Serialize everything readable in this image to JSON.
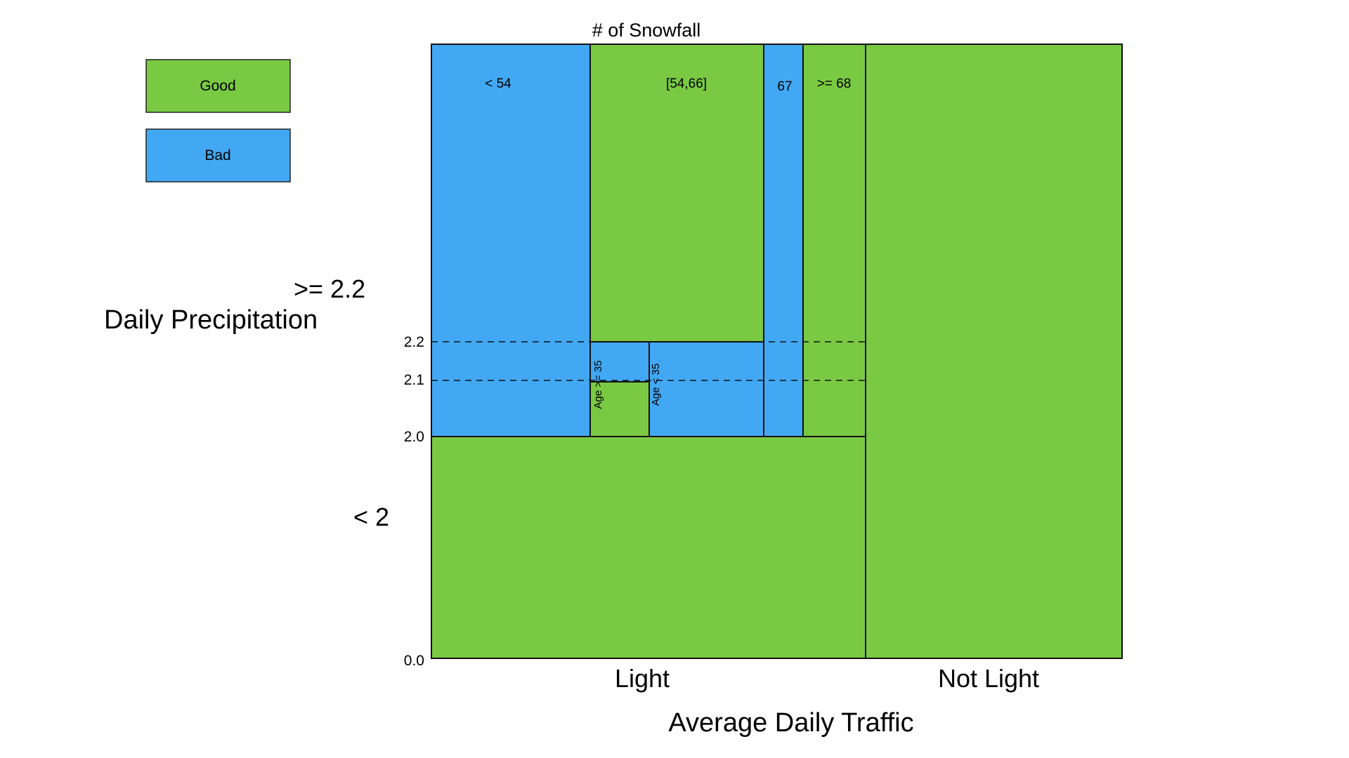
{
  "colors": {
    "good": "#7AC943",
    "bad": "#42A8F4"
  },
  "legend": {
    "good_label": "Good",
    "bad_label": "Bad"
  },
  "header": {
    "snowfall_label": "# of Snowfall"
  },
  "y_axis": {
    "title": "Daily Precipitation",
    "upper_group": ">= 2.2",
    "lower_group": "< 2",
    "ticks": [
      "2.2",
      "2.1",
      "2.0",
      "0.0"
    ]
  },
  "x_axis": {
    "title": "Average Daily Traffic",
    "light": "Light",
    "not_light": "Not Light"
  },
  "snowfall_bins": {
    "lt54": "< 54",
    "range_54_66": "[54,66]",
    "eq67": "67",
    "ge68": ">= 68"
  },
  "age_labels": {
    "ge35": "Age >= 35",
    "lt35": "Age < 35"
  },
  "regions": {
    "not_light": "good",
    "light_precip_lt2": "good",
    "snow_lt54": "bad",
    "snow_54_66_high": "good",
    "snow_54_66_age_ge35_mid": "bad",
    "snow_54_66_age_ge35_low": "good",
    "snow_54_66_age_lt35": "bad",
    "snow_67": "bad",
    "snow_ge68": "good"
  }
}
